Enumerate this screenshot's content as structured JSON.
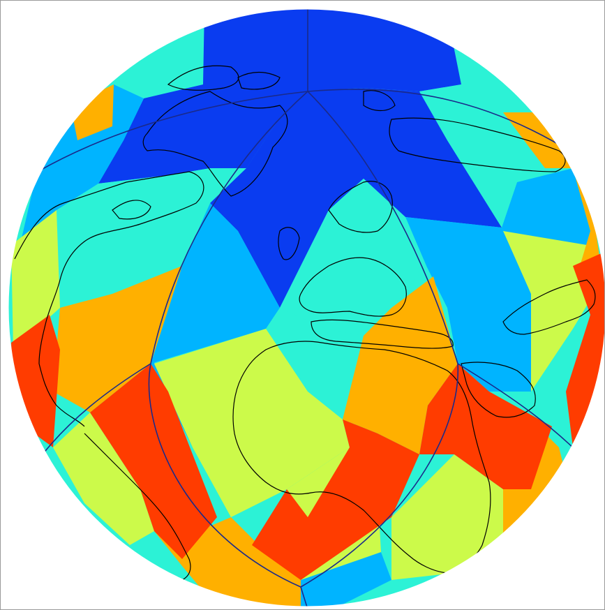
{
  "figure": {
    "kind": "orthographic-globe",
    "description_visible_text": "",
    "palette": {
      "dark_blue": "#0a3cf0",
      "blue": "#00b4ff",
      "cyan": "#2cf2d6",
      "yellow_green": "#ccfa4a",
      "orange": "#ffb000",
      "red": "#ff3c00"
    },
    "coastline_color": "#000000",
    "grid_edge_color": "#1a2a8a"
  }
}
